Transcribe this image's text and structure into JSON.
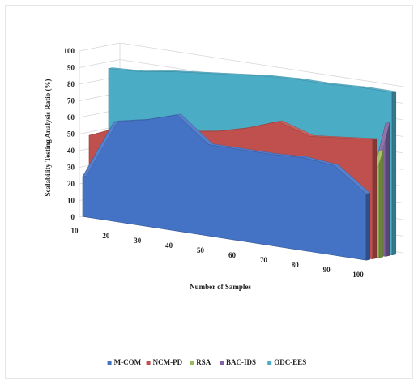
{
  "chart_data": {
    "type": "area",
    "variant": "3d-area",
    "title": "",
    "xlabel": "Number of Samples",
    "ylabel": "Scalability Testing Analysis Ratio (%)",
    "x": [
      10,
      20,
      30,
      40,
      50,
      60,
      70,
      80,
      90,
      100
    ],
    "ylim": [
      0,
      100
    ],
    "yticks": [
      "0",
      "10",
      "20",
      "30",
      "40",
      "50",
      "60",
      "70",
      "80",
      "90",
      "100"
    ],
    "xticks": [
      "10",
      "20",
      "30",
      "40",
      "50",
      "60",
      "70",
      "80",
      "90",
      "100"
    ],
    "grid": true,
    "legend_position": "bottom",
    "series": [
      {
        "name": "M-COM",
        "color": "#4472c4",
        "values": [
          24,
          60,
          64,
          70,
          55,
          55,
          55,
          56,
          54,
          40
        ]
      },
      {
        "name": "NCM-PD",
        "color": "#c0504d",
        "values": [
          48,
          56,
          56,
          59,
          62,
          67,
          74,
          68,
          70,
          72
        ]
      },
      {
        "name": "RSA",
        "color": "#9bbb59",
        "values": [
          0,
          0,
          0,
          0,
          0,
          0,
          0,
          0,
          0,
          64
        ]
      },
      {
        "name": "BAC-IDS",
        "color": "#8064a2",
        "values": [
          0,
          0,
          0,
          0,
          0,
          0,
          0,
          0,
          0,
          80
        ]
      },
      {
        "name": "ODC-EES",
        "color": "#4bacc6",
        "values": [
          86,
          87,
          90,
          92,
          94,
          96,
          97,
          97,
          98,
          98
        ]
      }
    ]
  }
}
